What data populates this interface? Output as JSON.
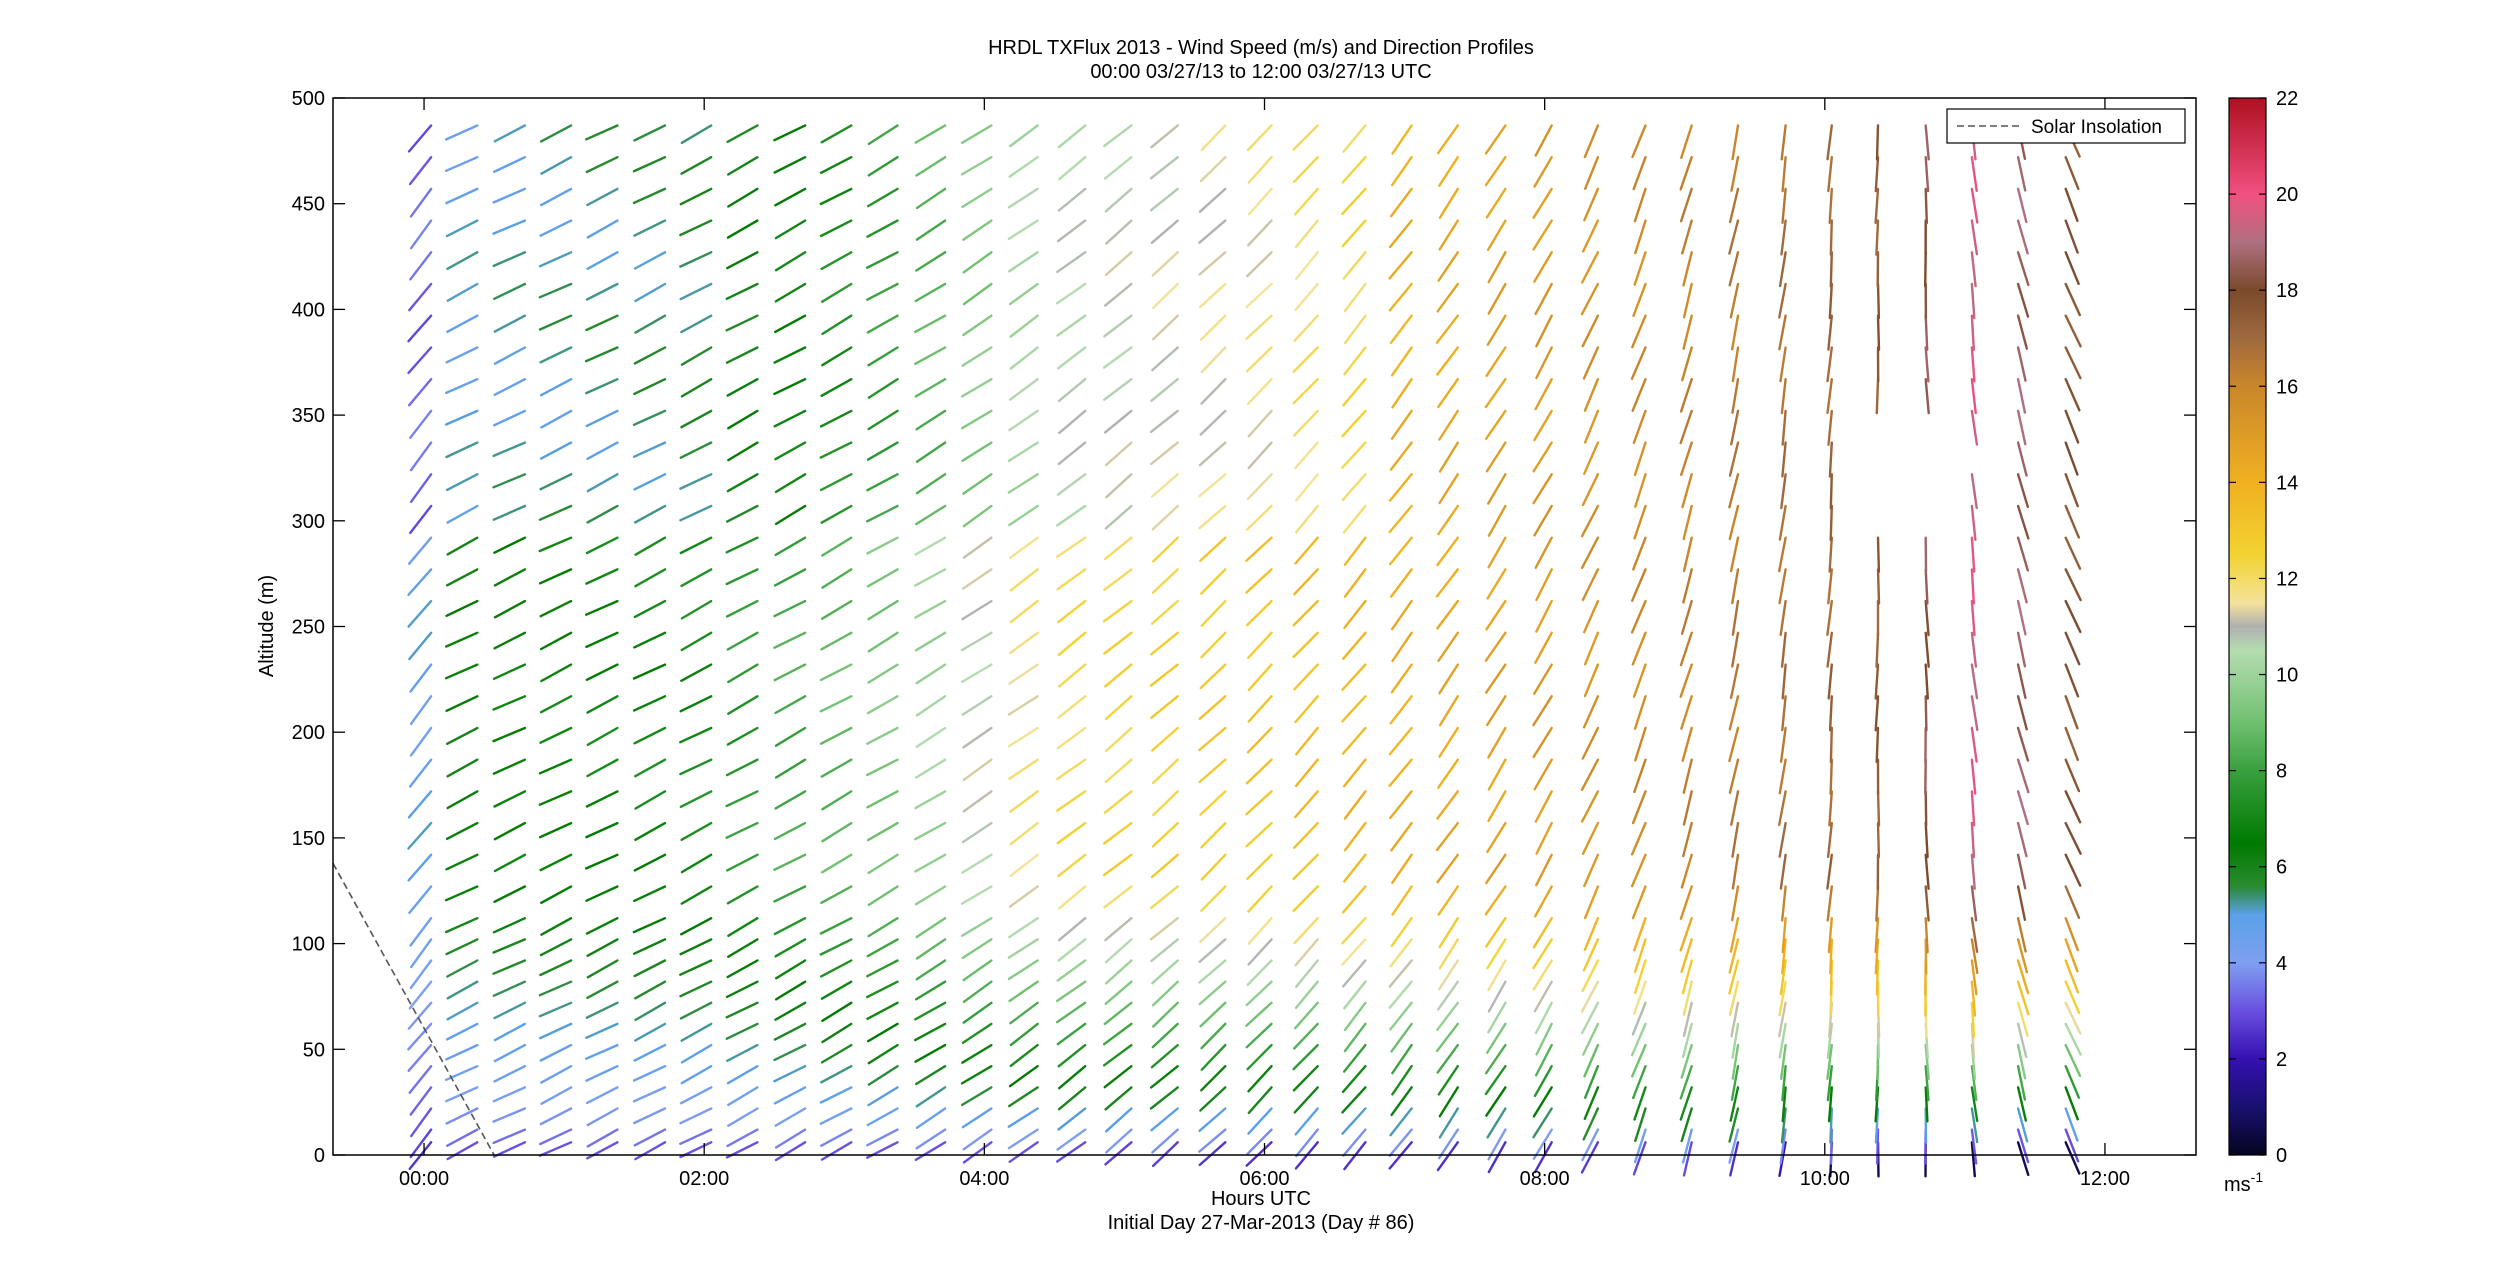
{
  "chart_data": {
    "type": "wind-barb-profile",
    "title": "HRDL TXFlux 2013 - Wind Speed (m/s) and Direction Profiles",
    "subtitle": "00:00 03/27/13 to 12:00 03/27/13  UTC",
    "xlabel": "Hours UTC",
    "xlabel2": "Initial Day 27-Mar-2013 (Day # 86)",
    "ylabel": "Altitude (m)",
    "xlim_hours": [
      -0.65,
      12.65
    ],
    "ylim": [
      0,
      500
    ],
    "x_ticks": [
      {
        "hour": 0,
        "label": "00:00"
      },
      {
        "hour": 2,
        "label": "02:00"
      },
      {
        "hour": 4,
        "label": "04:00"
      },
      {
        "hour": 6,
        "label": "06:00"
      },
      {
        "hour": 8,
        "label": "08:00"
      },
      {
        "hour": 10,
        "label": "10:00"
      },
      {
        "hour": 12,
        "label": "12:00"
      }
    ],
    "y_ticks": [
      0,
      50,
      100,
      150,
      200,
      250,
      300,
      350,
      400,
      450,
      500
    ],
    "legend": {
      "label": "Solar Insolation",
      "placement": "top-right",
      "style": "dashed",
      "color": "#555555"
    },
    "colorbar": {
      "label": "ms",
      "label_exponent": "-1",
      "range": [
        0,
        22
      ],
      "ticks": [
        0,
        2,
        4,
        6,
        8,
        10,
        12,
        14,
        16,
        18,
        20,
        22
      ],
      "stops": [
        {
          "v": 0,
          "c": "#05051e"
        },
        {
          "v": 1,
          "c": "#1a1070"
        },
        {
          "v": 2,
          "c": "#3510b0"
        },
        {
          "v": 3,
          "c": "#6a50e0"
        },
        {
          "v": 4,
          "c": "#7fa0f0"
        },
        {
          "v": 5,
          "c": "#5aa0e8"
        },
        {
          "v": 5.6,
          "c": "#2a8a30"
        },
        {
          "v": 6.5,
          "c": "#007a00"
        },
        {
          "v": 8,
          "c": "#3aa040"
        },
        {
          "v": 9,
          "c": "#70c070"
        },
        {
          "v": 10.5,
          "c": "#b4dcb0"
        },
        {
          "v": 11,
          "c": "#b0b0b0"
        },
        {
          "v": 11.5,
          "c": "#f4e39a"
        },
        {
          "v": 12.5,
          "c": "#f2d230"
        },
        {
          "v": 14,
          "c": "#f0b020"
        },
        {
          "v": 16,
          "c": "#c8862a"
        },
        {
          "v": 17,
          "c": "#a06a40"
        },
        {
          "v": 18,
          "c": "#7a4a2c"
        },
        {
          "v": 19,
          "c": "#b07080"
        },
        {
          "v": 20,
          "c": "#f05080"
        },
        {
          "v": 21,
          "c": "#d03050"
        },
        {
          "v": 22,
          "c": "#b01020"
        }
      ]
    },
    "profile_columns_hours": [
      0.05,
      0.38,
      0.72,
      1.05,
      1.38,
      1.72,
      2.05,
      2.38,
      2.72,
      3.05,
      3.38,
      3.72,
      4.05,
      4.38,
      4.72,
      5.05,
      5.38,
      5.72,
      6.05,
      6.38,
      6.72,
      7.05,
      7.38,
      7.72,
      8.05,
      8.38,
      8.72,
      9.05,
      9.38,
      9.72,
      10.05,
      10.38,
      10.72,
      11.05,
      11.38,
      11.72
    ],
    "profile_levels_m": [
      6,
      12,
      22,
      32,
      42,
      52,
      62,
      72,
      82,
      92,
      102,
      112,
      127,
      142,
      157,
      172,
      187,
      202,
      217,
      232,
      247,
      262,
      277,
      292,
      307,
      322,
      337,
      352,
      367,
      382,
      397,
      412,
      427,
      442,
      457,
      472,
      487
    ],
    "notes_speed_by_time": [
      {
        "hour": 0.0,
        "low": 2.5,
        "high": 4.5
      },
      {
        "hour": 0.4,
        "low": 3.0,
        "high": 6.5
      },
      {
        "hour": 2.0,
        "low": 3.0,
        "high": 7.0
      },
      {
        "hour": 3.5,
        "low": 3.0,
        "high": 9.5
      },
      {
        "hour": 4.5,
        "low": 3.0,
        "high": 12.0
      },
      {
        "hour": 6.0,
        "low": 2.5,
        "high": 13.0
      },
      {
        "hour": 8.0,
        "low": 2.5,
        "high": 15.0
      },
      {
        "hour": 9.0,
        "low": 3.0,
        "high": 16.0
      },
      {
        "hour": 10.5,
        "low": 1.0,
        "high": 17.5
      },
      {
        "hour": 11.05,
        "low": 1.0,
        "high": 19.5
      },
      {
        "hour": 11.8,
        "low": 1.0,
        "high": 17.5
      }
    ],
    "direction_from_deg_by_time": [
      {
        "hour": 0.0,
        "deg": 325
      },
      {
        "hour": 0.4,
        "deg": 295
      },
      {
        "hour": 3.5,
        "deg": 300
      },
      {
        "hour": 6.0,
        "deg": 315
      },
      {
        "hour": 8.0,
        "deg": 330
      },
      {
        "hour": 9.5,
        "deg": 350
      },
      {
        "hour": 11.0,
        "deg": 5
      },
      {
        "hour": 11.8,
        "deg": 25
      }
    ],
    "solar_insolation_line_hours_alt": [
      [
        -0.65,
        138
      ],
      [
        0.5,
        0
      ]
    ]
  }
}
